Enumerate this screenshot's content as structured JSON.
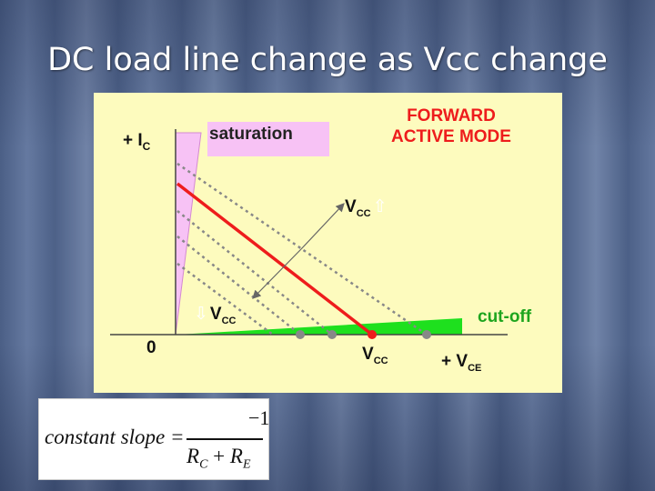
{
  "slide": {
    "title": "DC load line change as Vcc change"
  },
  "diagram": {
    "y_axis_label": "+ I",
    "y_axis_sub": "C",
    "x_axis_label": "+ V",
    "x_axis_sub": "CE",
    "origin_label": "0",
    "saturation_label": "saturation",
    "mode_label_line1": "FORWARD",
    "mode_label_line2": "ACTIVE MODE",
    "cutoff_label": "cut-off",
    "vcc_up": {
      "main": "V",
      "sub": "CC",
      "arrow": "⇧"
    },
    "vcc_down": {
      "main": "V",
      "sub": "CC",
      "arrow": "⇩"
    },
    "vcc_axis": {
      "main": "V",
      "sub": "CC"
    },
    "colors": {
      "background": "#fdfbbe",
      "saturation_fill": "#f7c2f5",
      "cutoff_fill": "#1ee01e",
      "load_line": "#ee1c1c",
      "dotted_lines": "#888888",
      "mode_text": "#ee1c1c",
      "cutoff_text": "#1ea51e"
    }
  },
  "formula": {
    "lhs": "constant slope =",
    "numerator": "−1",
    "den_r1": "R",
    "den_r1_sub": "C",
    "plus": "+",
    "den_r2": "R",
    "den_r2_sub": "E"
  }
}
